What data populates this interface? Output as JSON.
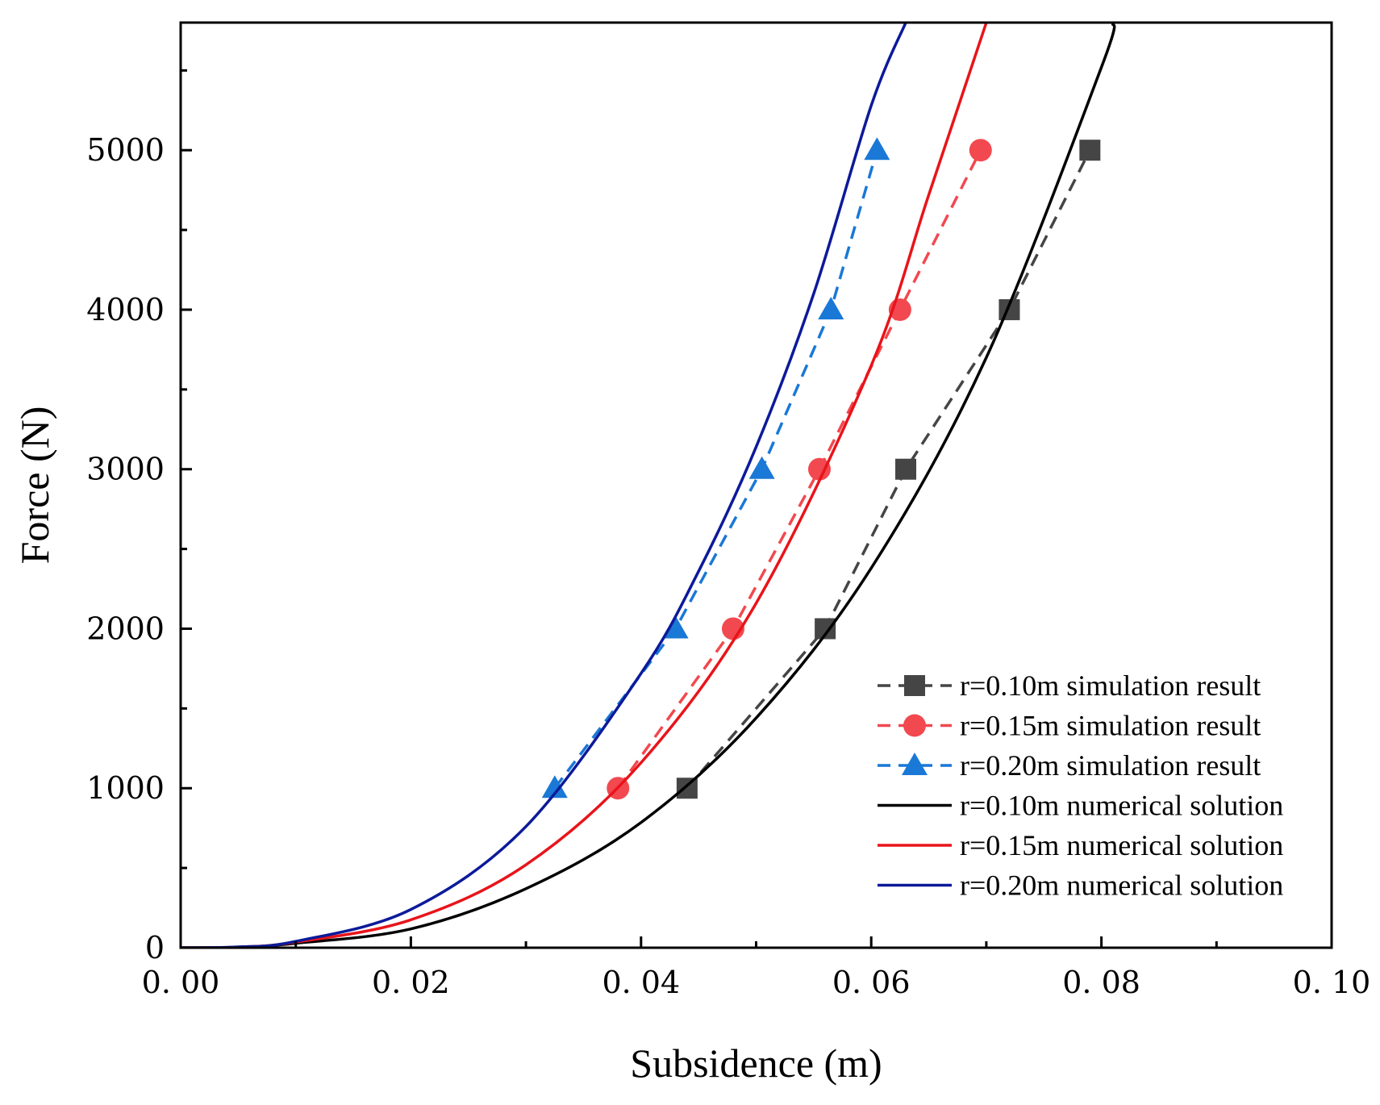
{
  "chart_data": {
    "type": "line",
    "xlabel": "Subsidence (m)",
    "ylabel": "Force (N)",
    "xlim": [
      0,
      0.1
    ],
    "ylim": [
      0,
      5800
    ],
    "x_ticks": [
      0,
      0.02,
      0.04,
      0.06,
      0.08,
      0.1
    ],
    "x_tick_labels": [
      "0. 00",
      "0. 02",
      "0. 04",
      "0. 06",
      "0. 08",
      "0. 10"
    ],
    "y_ticks": [
      0,
      1000,
      2000,
      3000,
      4000,
      5000
    ],
    "y_tick_labels": [
      "0",
      "1000",
      "2000",
      "3000",
      "4000",
      "5000"
    ],
    "grid": false,
    "legend_position": "bottom-right",
    "series": [
      {
        "name": "r=0.10m simulation result",
        "style": "dashed",
        "marker": "square",
        "color": "#454545",
        "x": [
          0.044,
          0.056,
          0.063,
          0.072,
          0.079
        ],
        "y": [
          1000,
          2000,
          3000,
          4000,
          5000
        ]
      },
      {
        "name": "r=0.15m simulation result",
        "style": "dashed",
        "marker": "circle",
        "color": "#f2484f",
        "x": [
          0.038,
          0.048,
          0.0555,
          0.0625,
          0.0695
        ],
        "y": [
          1000,
          2000,
          3000,
          4000,
          5000
        ]
      },
      {
        "name": "r=0.20m simulation result",
        "style": "dashed",
        "marker": "triangle",
        "color": "#1a78d6",
        "x": [
          0.0325,
          0.043,
          0.0505,
          0.0565,
          0.0605
        ],
        "y": [
          1000,
          2000,
          3000,
          4000,
          5000
        ]
      },
      {
        "name": "r=0.10m numerical solution",
        "style": "solid",
        "marker": "none",
        "color": "#000000",
        "x": [
          0.005,
          0.01,
          0.02,
          0.03,
          0.04,
          0.05,
          0.06,
          0.07,
          0.08,
          0.081
        ],
        "y": [
          3,
          28,
          118,
          370,
          785,
          1440,
          2380,
          3700,
          5520,
          5800
        ]
      },
      {
        "name": "r=0.15m numerical solution",
        "style": "solid",
        "marker": "none",
        "color": "#e8141a",
        "x": [
          0.005,
          0.01,
          0.02,
          0.03,
          0.04,
          0.05,
          0.06,
          0.065,
          0.07
        ],
        "y": [
          4,
          35,
          175,
          520,
          1160,
          2160,
          3650,
          4720,
          5800
        ]
      },
      {
        "name": "r=0.20m numerical solution",
        "style": "solid",
        "marker": "none",
        "color": "#0c1a9a",
        "x": [
          0.005,
          0.01,
          0.02,
          0.03,
          0.04,
          0.045,
          0.05,
          0.055,
          0.06,
          0.063
        ],
        "y": [
          5,
          40,
          240,
          760,
          1720,
          2360,
          3140,
          4100,
          5280,
          5800
        ]
      }
    ]
  }
}
